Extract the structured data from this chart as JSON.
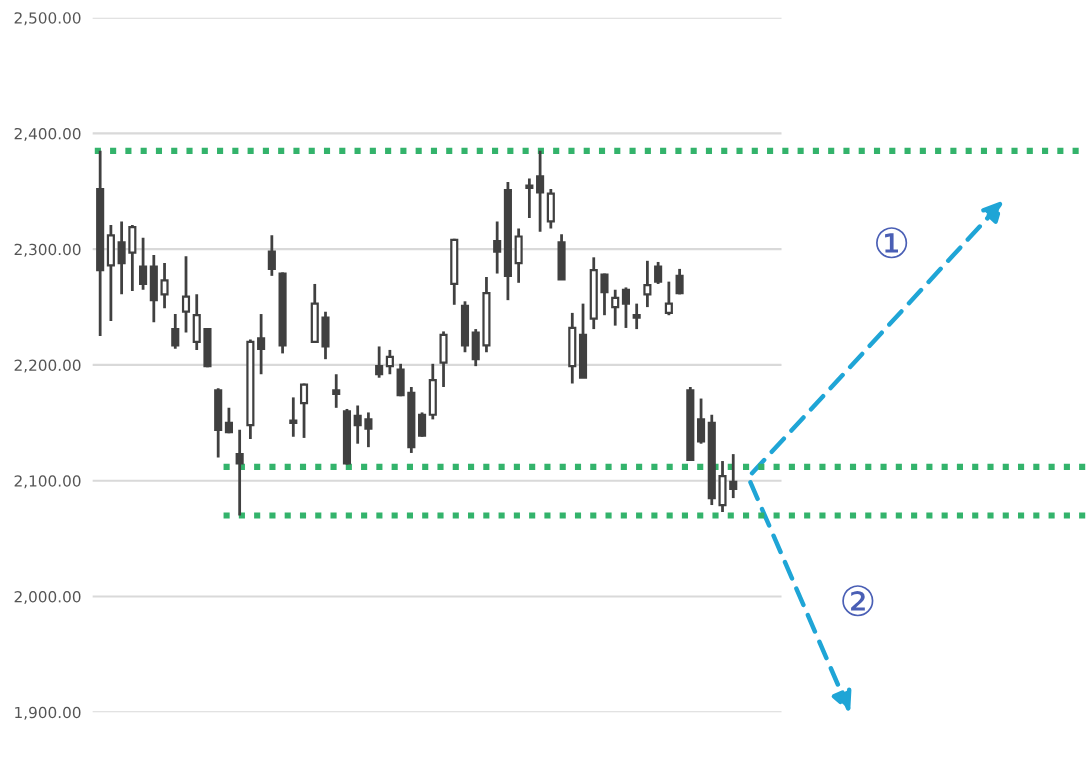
{
  "chart_data": {
    "type": "candlestick",
    "categories": [
      null,
      null,
      null,
      null,
      null,
      null,
      null,
      null,
      null,
      null,
      null,
      null,
      null,
      null,
      null,
      null,
      null,
      null,
      null,
      null,
      null,
      null,
      null,
      null,
      null,
      null,
      null,
      null,
      null,
      null,
      null,
      null,
      null,
      null,
      null,
      null,
      null,
      null,
      null,
      null,
      null,
      null,
      null,
      null,
      null,
      null,
      null,
      null,
      null,
      null,
      null,
      null,
      null,
      null,
      null,
      null,
      null,
      null,
      null,
      null
    ],
    "ohlc": [
      [
        2352,
        2385,
        2225,
        2282
      ],
      [
        2286,
        2321,
        2238,
        2312
      ],
      [
        2306,
        2324,
        2261,
        2288
      ],
      [
        2297,
        2321,
        2264,
        2319
      ],
      [
        2285,
        2310,
        2265,
        2270
      ],
      [
        2285,
        2295,
        2237,
        2256
      ],
      [
        2261,
        2288,
        2249,
        2273
      ],
      [
        2231,
        2244,
        2214,
        2217
      ],
      [
        2246,
        2294,
        2228,
        2259
      ],
      [
        2220,
        2261,
        2213,
        2243
      ],
      [
        2231,
        2231,
        2198,
        2199
      ],
      [
        2178,
        2180,
        2120,
        2144
      ],
      [
        2150,
        2163,
        2141,
        2142
      ],
      [
        2123,
        2144,
        2070,
        2115
      ],
      [
        2148,
        2222,
        2136,
        2220
      ],
      [
        2223,
        2244,
        2192,
        2214
      ],
      [
        2298,
        2312,
        2277,
        2283
      ],
      [
        2279,
        2280,
        2210,
        2217
      ],
      [
        2152,
        2172,
        2138,
        2150
      ],
      [
        2167,
        2184,
        2137,
        2183
      ],
      [
        2220,
        2270,
        2219,
        2253
      ],
      [
        2241,
        2246,
        2205,
        2216
      ],
      [
        2178,
        2192,
        2163,
        2175
      ],
      [
        2160,
        2162,
        2114,
        2115
      ],
      [
        2156,
        2165,
        2132,
        2148
      ],
      [
        2153,
        2159,
        2129,
        2145
      ],
      [
        2199,
        2216,
        2189,
        2192
      ],
      [
        2199,
        2213,
        2192,
        2207
      ],
      [
        2196,
        2201,
        2173,
        2174
      ],
      [
        2176,
        2181,
        2124,
        2129
      ],
      [
        2157,
        2159,
        2138,
        2139
      ],
      [
        2157,
        2201,
        2153,
        2187
      ],
      [
        2202,
        2229,
        2181,
        2226
      ],
      [
        2270,
        2309,
        2252,
        2308
      ],
      [
        2251,
        2255,
        2211,
        2217
      ],
      [
        2228,
        2231,
        2199,
        2205
      ],
      [
        2217,
        2276,
        2211,
        2262
      ],
      [
        2307,
        2324,
        2279,
        2298
      ],
      [
        2351,
        2358,
        2256,
        2277
      ],
      [
        2288,
        2318,
        2271,
        2311
      ],
      [
        2355,
        2361,
        2327,
        2353
      ],
      [
        2363,
        2385,
        2315,
        2349
      ],
      [
        2324,
        2352,
        2318,
        2348
      ],
      [
        2306,
        2313,
        2274,
        2274
      ],
      [
        2199,
        2245,
        2184,
        2232
      ],
      [
        2226,
        2253,
        2189,
        2189
      ],
      [
        2240,
        2293,
        2231,
        2282
      ],
      [
        2278,
        2279,
        2243,
        2263
      ],
      [
        2250,
        2265,
        2234,
        2258
      ],
      [
        2265,
        2267,
        2232,
        2253
      ],
      [
        2243,
        2253,
        2231,
        2241
      ],
      [
        2261,
        2290,
        2250,
        2269
      ],
      [
        2285,
        2289,
        2270,
        2272
      ],
      [
        2245,
        2272,
        2243,
        2253
      ],
      [
        2277,
        2283,
        2261,
        2262
      ],
      [
        2178,
        2181,
        2118,
        2118
      ],
      [
        2153,
        2171,
        2132,
        2134
      ],
      [
        2150,
        2157,
        2079,
        2085
      ],
      [
        2079,
        2117,
        2073,
        2104
      ],
      [
        2099,
        2123,
        2085,
        2093
      ]
    ],
    "ylim": [
      1900,
      2500
    ],
    "yticks": [
      {
        "value": 1900,
        "label": "1,900.00"
      },
      {
        "value": 2000,
        "label": "2,000.00"
      },
      {
        "value": 2100,
        "label": "2,100.00"
      },
      {
        "value": 2200,
        "label": "2,200.00"
      },
      {
        "value": 2300,
        "label": "2,300.00"
      },
      {
        "value": 2400,
        "label": "2,400.00"
      },
      {
        "value": 2500,
        "label": "2,500.00"
      }
    ],
    "grid": "y",
    "tick_labels": "y",
    "ref_lines": [
      {
        "axis": "y",
        "value": 2385,
        "color": "#33b36b",
        "line_style": "dotted"
      },
      {
        "axis": "y",
        "value": 2112,
        "color": "#33b36b",
        "line_style": "dotted"
      },
      {
        "axis": "y",
        "value": 2070,
        "color": "#33b36b",
        "line_style": "dotted"
      }
    ],
    "annotations": [
      "①",
      "②"
    ]
  }
}
